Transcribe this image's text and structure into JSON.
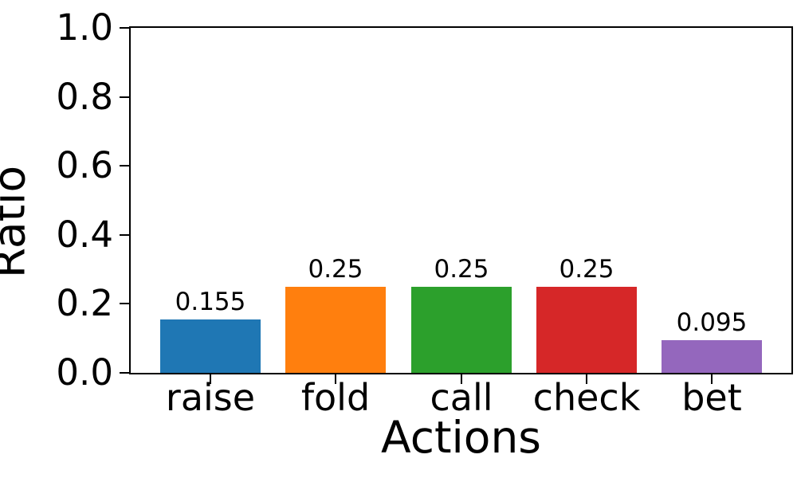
{
  "chart_data": {
    "type": "bar",
    "title": "",
    "xlabel": "Actions",
    "ylabel": "Ratio",
    "categories": [
      "raise",
      "fold",
      "call",
      "check",
      "bet"
    ],
    "values": [
      0.155,
      0.25,
      0.25,
      0.25,
      0.095
    ],
    "value_labels": [
      "0.155",
      "0.25",
      "0.25",
      "0.25",
      "0.095"
    ],
    "bar_colors": [
      "#1f77b4",
      "#ff7f0e",
      "#2ca02c",
      "#d62728",
      "#9467bd"
    ],
    "ylim": [
      0.0,
      1.0
    ],
    "yticks": [
      "0.0",
      "0.2",
      "0.4",
      "0.6",
      "0.8",
      "1.0"
    ],
    "xlim": [
      -0.64,
      4.64
    ],
    "bar_width_ratio": 0.8,
    "grid": false,
    "legend": null,
    "frame": "full-box",
    "text_color": "#000000",
    "background_color": "#ffffff"
  }
}
